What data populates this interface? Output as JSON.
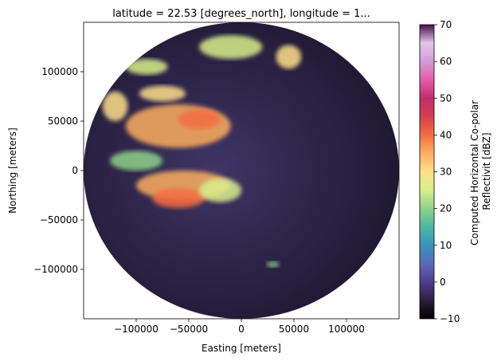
{
  "chart_data": {
    "type": "heatmap",
    "title": "latitude = 22.53 [degrees_north], longitude = 1...",
    "xlabel": "Easting [meters]",
    "ylabel": "Northing [meters]",
    "xlim": [
      -150000,
      150000
    ],
    "ylim": [
      -150000,
      150000
    ],
    "xticks": [
      -100000,
      -50000,
      0,
      50000,
      100000
    ],
    "xtick_labels": [
      "−100000",
      "−50000",
      "0",
      "50000",
      "100000"
    ],
    "yticks": [
      100000,
      50000,
      0,
      -50000,
      -100000
    ],
    "ytick_labels": [
      "100000",
      "50000",
      "0",
      "−50000",
      "−100000"
    ],
    "radar_range": 150000,
    "colorbar": {
      "label_lines": [
        "Computed Horizontal Co-polar",
        "Reflectivit [dBZ]"
      ],
      "min": -10,
      "max": 70,
      "ticks": [
        -10,
        0,
        10,
        20,
        30,
        40,
        50,
        60,
        70
      ],
      "colormap": [
        "#000000",
        "#2d1e3e",
        "#4e3d8e",
        "#5c6bb4",
        "#3794bf",
        "#4cb9a0",
        "#8fd18a",
        "#d9ef8b",
        "#fee08b",
        "#fdae61",
        "#f46d43",
        "#d53e4f",
        "#c22d69",
        "#e35da7",
        "#d69bd6",
        "#e0c7e8",
        "#4a0a4d"
      ]
    },
    "echo_regions": [
      {
        "cx": -60000,
        "cy": 45000,
        "rx": 50000,
        "ry": 22000,
        "dbz": 35
      },
      {
        "cx": -40000,
        "cy": 52000,
        "rx": 20000,
        "ry": 10000,
        "dbz": 42
      },
      {
        "cx": -120000,
        "cy": 65000,
        "rx": 12000,
        "ry": 15000,
        "dbz": 28
      },
      {
        "cx": -75000,
        "cy": 78000,
        "rx": 22000,
        "ry": 8000,
        "dbz": 30
      },
      {
        "cx": -55000,
        "cy": -15000,
        "rx": 45000,
        "ry": 15000,
        "dbz": 33
      },
      {
        "cx": -60000,
        "cy": -28000,
        "rx": 25000,
        "ry": 10000,
        "dbz": 42
      },
      {
        "cx": -10000,
        "cy": 125000,
        "rx": 30000,
        "ry": 12000,
        "dbz": 26
      },
      {
        "cx": 45000,
        "cy": 115000,
        "rx": 12000,
        "ry": 12000,
        "dbz": 28
      },
      {
        "cx": -90000,
        "cy": 105000,
        "rx": 20000,
        "ry": 8000,
        "dbz": 24
      },
      {
        "cx": -20000,
        "cy": -20000,
        "rx": 20000,
        "ry": 12000,
        "dbz": 25
      },
      {
        "cx": -100000,
        "cy": 10000,
        "rx": 25000,
        "ry": 10000,
        "dbz": 22
      },
      {
        "cx": 30000,
        "cy": -95000,
        "rx": 6000,
        "ry": 3000,
        "dbz": 20
      }
    ]
  }
}
